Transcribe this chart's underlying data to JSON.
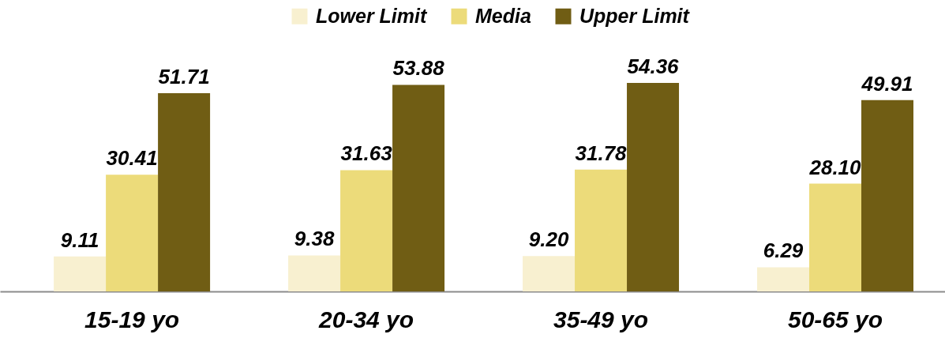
{
  "chart_data": {
    "type": "bar",
    "categories": [
      "15-19 yo",
      "20-34 yo",
      "35-49 yo",
      "50-65 yo"
    ],
    "series": [
      {
        "name": "Lower Limit",
        "color": "#f8f0d0",
        "values": [
          9.11,
          9.38,
          9.2,
          6.29
        ],
        "value_labels": [
          "9.11",
          "9.38",
          "9.20",
          "6.29"
        ]
      },
      {
        "name": "Media",
        "color": "#ecdb7a",
        "values": [
          30.41,
          31.63,
          31.78,
          28.1
        ],
        "value_labels": [
          "30.41",
          "31.63",
          "31.78",
          "28.10"
        ]
      },
      {
        "name": "Upper Limit",
        "color": "#705d14",
        "values": [
          51.71,
          53.88,
          54.36,
          49.91
        ],
        "value_labels": [
          "51.71",
          "53.88",
          "54.36",
          "49.91"
        ]
      }
    ],
    "legend": "top",
    "tick_labels": "x"
  }
}
